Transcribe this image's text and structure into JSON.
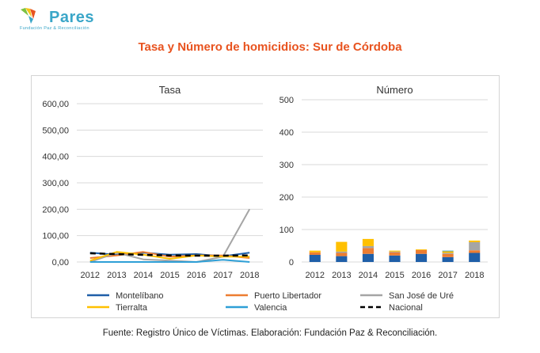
{
  "brand": {
    "name": "Pares",
    "tagline": "Fundación Paz & Reconciliación",
    "colors": {
      "teal": "#3aa6c8",
      "green": "#7cc242",
      "yellow": "#f5c518",
      "orange": "#e8531f"
    }
  },
  "title": "Tasa y Número de homicidios: Sur de Córdoba",
  "source": "Fuente: Registro Único de Víctimas. Elaboración: Fundación Paz & Reconciliación.",
  "chart_data": [
    {
      "type": "line",
      "title": "Tasa",
      "categories": [
        "2012",
        "2013",
        "2014",
        "2015",
        "2016",
        "2017",
        "2018"
      ],
      "ylim": [
        0,
        600
      ],
      "yticks": [
        "0,00",
        "100,00",
        "200,00",
        "300,00",
        "400,00",
        "500,00",
        "600,00"
      ],
      "grid": true,
      "series": [
        {
          "name": "Montelíbano",
          "color": "#1f5fa8",
          "dash": false,
          "values": [
            35,
            28,
            35,
            28,
            30,
            22,
            35
          ]
        },
        {
          "name": "Puerto Libertador",
          "color": "#ed7d31",
          "dash": false,
          "values": [
            15,
            25,
            38,
            20,
            25,
            25,
            15
          ]
        },
        {
          "name": "San José de Uré",
          "color": "#a5a5a5",
          "dash": false,
          "values": [
            0,
            35,
            10,
            5,
            0,
            20,
            200
          ]
        },
        {
          "name": "Tierralta",
          "color": "#ffc000",
          "dash": false,
          "values": [
            5,
            38,
            28,
            12,
            25,
            20,
            20
          ]
        },
        {
          "name": "Valencia",
          "color": "#2e9fd6",
          "dash": false,
          "values": [
            0,
            0,
            0,
            0,
            0,
            8,
            0
          ]
        },
        {
          "name": "Nacional",
          "color": "#000000",
          "dash": true,
          "values": [
            33,
            30,
            27,
            25,
            24,
            24,
            25
          ]
        }
      ]
    },
    {
      "type": "bar",
      "stacked": true,
      "title": "Número",
      "categories": [
        "2012",
        "2013",
        "2014",
        "2015",
        "2016",
        "2017",
        "2018"
      ],
      "ylim": [
        0,
        500
      ],
      "yticks": [
        "0",
        "100",
        "200",
        "300",
        "400",
        "500"
      ],
      "grid": true,
      "series": [
        {
          "name": "Montelíbano",
          "color": "#1f5fa8",
          "values": [
            22,
            18,
            25,
            20,
            25,
            15,
            28
          ]
        },
        {
          "name": "Puerto Libertador",
          "color": "#ed7d31",
          "values": [
            8,
            10,
            18,
            10,
            12,
            10,
            8
          ]
        },
        {
          "name": "San José de Uré",
          "color": "#a5a5a5",
          "values": [
            0,
            4,
            6,
            2,
            0,
            3,
            25
          ]
        },
        {
          "name": "Tierralta",
          "color": "#ffc000",
          "values": [
            5,
            30,
            22,
            3,
            2,
            5,
            5
          ]
        },
        {
          "name": "Valencia",
          "color": "#2e9fd6",
          "values": [
            0,
            0,
            0,
            0,
            0,
            2,
            0
          ]
        }
      ]
    }
  ],
  "legend": [
    {
      "name": "Montelíbano",
      "color": "#1f5fa8",
      "dash": false
    },
    {
      "name": "Puerto Libertador",
      "color": "#ed7d31",
      "dash": false
    },
    {
      "name": "San José de Uré",
      "color": "#a5a5a5",
      "dash": false
    },
    {
      "name": "Tierralta",
      "color": "#ffc000",
      "dash": false
    },
    {
      "name": "Valencia",
      "color": "#2e9fd6",
      "dash": false
    },
    {
      "name": "Nacional",
      "color": "#000000",
      "dash": true
    }
  ]
}
